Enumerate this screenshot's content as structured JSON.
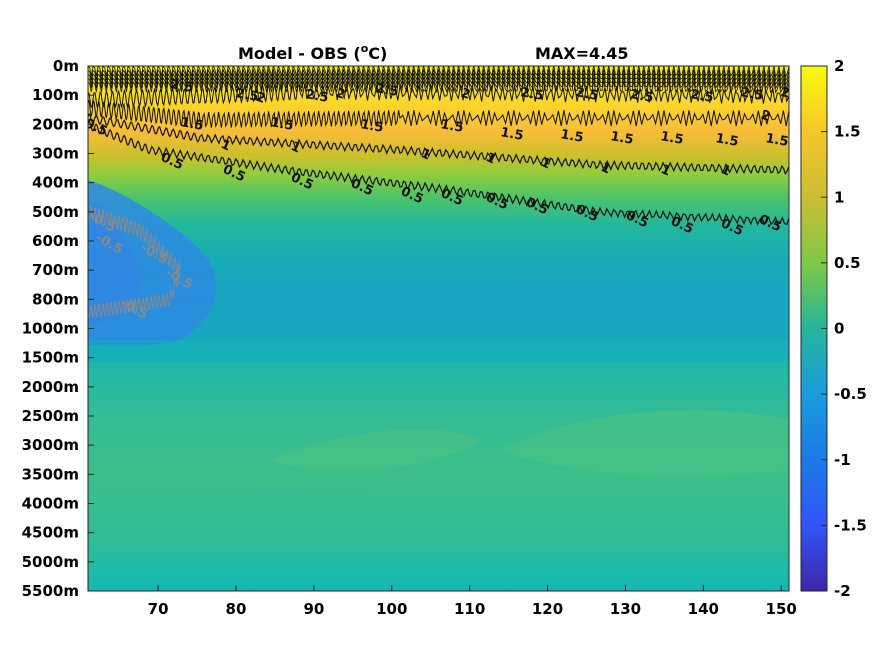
{
  "chart_data": {
    "type": "heatmap",
    "title": "Model - OBS (",
    "title_sup": "o",
    "title_unit": "C)",
    "max_label": "MAX=4.45",
    "x": {
      "ticks": [
        70,
        80,
        90,
        100,
        110,
        120,
        130,
        140,
        150
      ],
      "tick_labels": [
        "70",
        "80",
        "90",
        "100",
        "110",
        "120",
        "130",
        "140",
        "150"
      ],
      "range": [
        61,
        151
      ]
    },
    "y": {
      "tick_labels": [
        "0m",
        "100m",
        "200m",
        "300m",
        "400m",
        "500m",
        "600m",
        "700m",
        "800m",
        "1000m",
        "1500m",
        "2000m",
        "2500m",
        "3000m",
        "3500m",
        "4000m",
        "4500m",
        "5000m",
        "5500m"
      ]
    },
    "colorbar": {
      "range": [
        -2,
        2
      ],
      "ticks": [
        2,
        1.5,
        1,
        0.5,
        0,
        -0.5,
        -1,
        -1.5,
        -2
      ],
      "tick_labels": [
        "2",
        "1.5",
        "1",
        "0.5",
        "0",
        "-0.5",
        "-1",
        "-1.5",
        "-2"
      ],
      "colormap": "parula"
    },
    "contour_labels": {
      "c25": "2.5",
      "c2": "2",
      "c15": "1.5",
      "c1": "1",
      "c05": "0.5",
      "cm05": "-0.5"
    },
    "contours": [
      {
        "level": 1.5,
        "depth": [
          310,
          240,
          250,
          260,
          270,
          270
        ],
        "color": "#000000"
      },
      {
        "level": 1.0,
        "depth": [
          240,
          300,
          330,
          360,
          370,
          380
        ],
        "color": "#000000"
      },
      {
        "level": 0.5,
        "depth": [
          200,
          330,
          380,
          410,
          480,
          545
        ],
        "color": "#000000"
      },
      {
        "level": -0.5,
        "color": "#808080"
      }
    ],
    "grid": false
  }
}
